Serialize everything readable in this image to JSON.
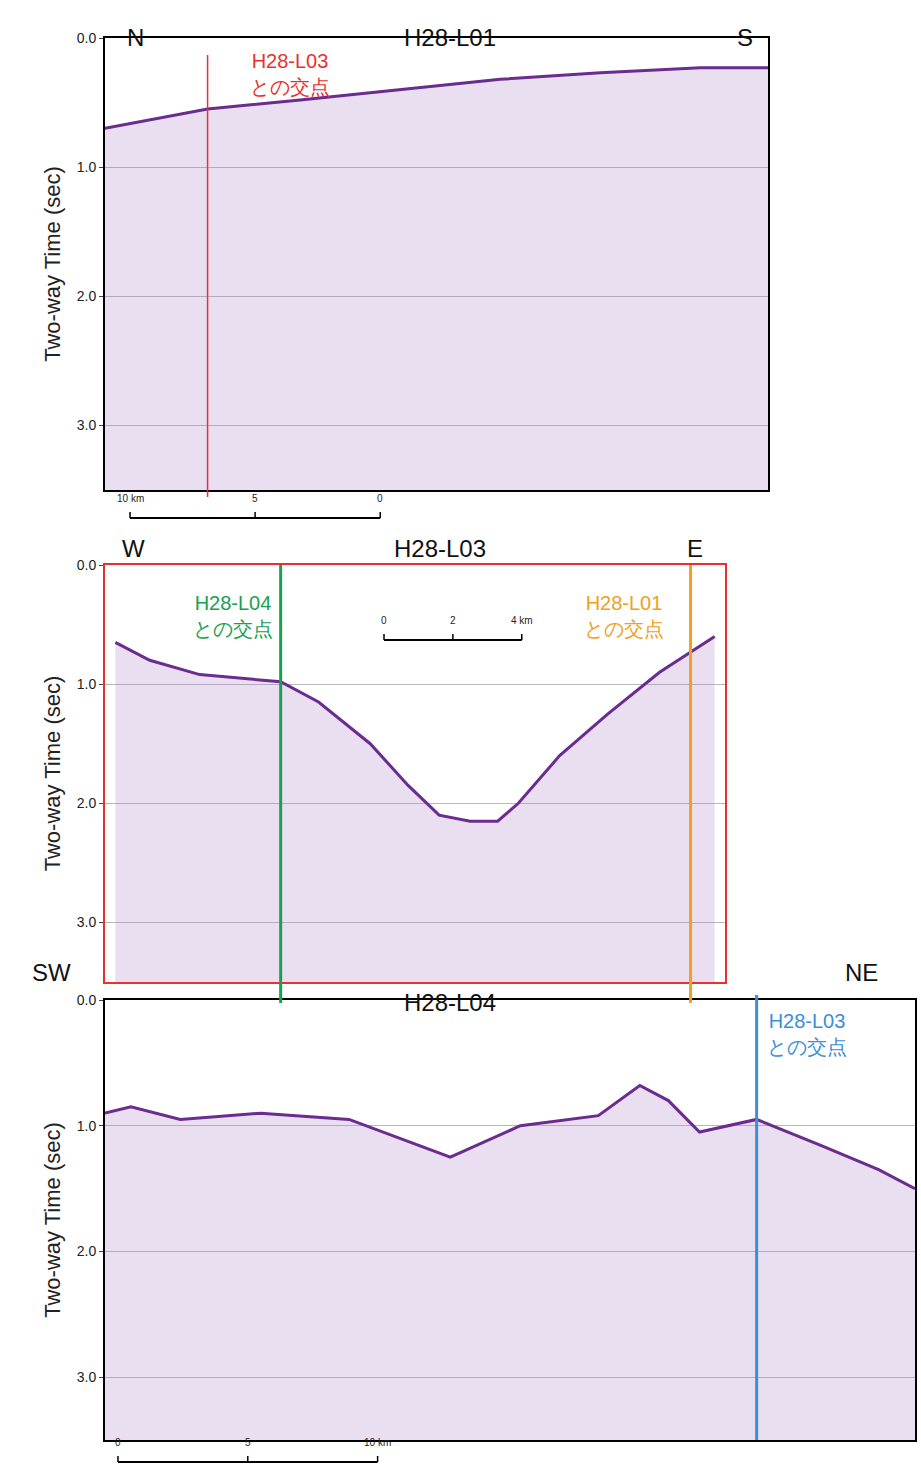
{
  "chart_data": [
    {
      "type": "line",
      "title": "H28-L01",
      "direction_labels": [
        "N",
        "S"
      ],
      "y_label": "Two-way Time (sec)",
      "xlim": [
        0,
        26.5
      ],
      "ylim": [
        3.5,
        0
      ],
      "yticks": [
        {
          "value": 0,
          "label": "0.0"
        },
        {
          "value": 1,
          "label": "1.0"
        },
        {
          "value": 2,
          "label": "2.0"
        },
        {
          "value": 3,
          "label": "3.0"
        }
      ],
      "grid": true,
      "tick_labels": "y",
      "color": "#6a2c8e",
      "x": [
        0,
        4.1,
        7.8,
        11.8,
        15.8,
        19.8,
        23.8,
        26.5
      ],
      "values": [
        0.7,
        0.55,
        0.48,
        0.4,
        0.32,
        0.27,
        0.23,
        0.23
      ],
      "intersections": [
        {
          "x": 4.1,
          "label": "H28-L03\nとの交点",
          "color": "#e8312f"
        }
      ],
      "scale_bar": [
        {
          "value": 1,
          "label": "10 km"
        },
        {
          "value": 6,
          "label": "5"
        },
        {
          "value": 11,
          "label": "0"
        }
      ]
    },
    {
      "type": "line",
      "title": "H28-L03",
      "direction_labels": [
        "W",
        "E"
      ],
      "y_label": "Two-way Time (sec)",
      "xlim": [
        0,
        18
      ],
      "ylim": [
        3.5,
        0
      ],
      "yticks": [
        {
          "value": 0,
          "label": "0.0"
        },
        {
          "value": 1,
          "label": "1.0"
        },
        {
          "value": 2,
          "label": "2.0"
        },
        {
          "value": 3,
          "label": "3.0"
        }
      ],
      "grid": true,
      "tick_labels": "y",
      "color": "#6a2c8e",
      "x": [
        0.3,
        1.3,
        2.75,
        5.1,
        6.2,
        7.7,
        8.8,
        9.7,
        10.6,
        11.4,
        12.0,
        13.2,
        14.6,
        16.1,
        17.7
      ],
      "values": [
        0.65,
        0.8,
        0.92,
        0.98,
        1.15,
        1.5,
        1.85,
        2.1,
        2.15,
        2.15,
        2.0,
        1.6,
        1.25,
        0.9,
        0.6
      ],
      "intersections": [
        {
          "x": 5.1,
          "label": "H28-L04\nとの交点",
          "color": "#1aa050"
        },
        {
          "x": 17.0,
          "label": "H28-L01\nとの交点",
          "color": "#f0a020"
        }
      ],
      "scale_bar": [
        {
          "value": 8.1,
          "label": "0"
        },
        {
          "value": 10.1,
          "label": "2"
        },
        {
          "value": 12.1,
          "label": "4 km"
        }
      ]
    },
    {
      "type": "line",
      "title": "H28-L04",
      "direction_labels": [
        "SW",
        "NE"
      ],
      "y_label": "Two-way Time (sec)",
      "xlim": [
        0,
        31.2
      ],
      "ylim": [
        3.5,
        0
      ],
      "yticks": [
        {
          "value": 0,
          "label": "0.0"
        },
        {
          "value": 1,
          "label": "1.0"
        },
        {
          "value": 2,
          "label": "2.0"
        },
        {
          "value": 3,
          "label": "3.0"
        }
      ],
      "grid": true,
      "tick_labels": "y",
      "color": "#6a2c8e",
      "x": [
        0,
        1,
        2.9,
        6,
        9.4,
        13.3,
        16,
        19,
        20.6,
        21.7,
        22.9,
        25.1,
        27.5,
        29.8,
        31.2
      ],
      "values": [
        0.9,
        0.85,
        0.95,
        0.9,
        0.95,
        1.25,
        1.0,
        0.92,
        0.68,
        0.8,
        1.05,
        0.95,
        1.15,
        1.35,
        1.5
      ],
      "intersections": [
        {
          "x": 25.1,
          "label": "H28-L03\nとの交点",
          "color": "#3a8fd6"
        }
      ],
      "scale_bar": [
        {
          "value": 0.5,
          "label": "0"
        },
        {
          "value": 5.5,
          "label": "5"
        },
        {
          "value": 10.5,
          "label": "10 km"
        }
      ]
    }
  ]
}
